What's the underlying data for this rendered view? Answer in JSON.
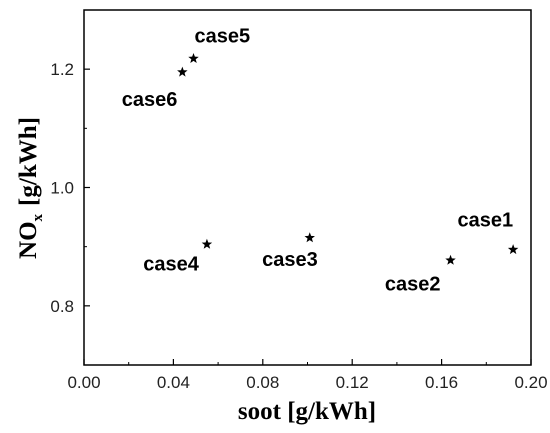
{
  "chart_data": {
    "type": "scatter",
    "title": "",
    "xlabel": "soot [g/kWh]",
    "ylabel_main": "NO",
    "ylabel_sub": "x",
    "ylabel_unit": "[g/kWh]",
    "xlim": [
      0.0,
      0.2
    ],
    "ylim": [
      0.7,
      1.3
    ],
    "xticks": [
      "0.00",
      "0.04",
      "0.08",
      "0.12",
      "0.16",
      "0.20"
    ],
    "yticks": [
      "0.8",
      "1.0",
      "1.2"
    ],
    "grid": false,
    "marker": "star",
    "points": [
      {
        "label": "case1",
        "x": 0.192,
        "y": 0.895
      },
      {
        "label": "case2",
        "x": 0.164,
        "y": 0.877
      },
      {
        "label": "case3",
        "x": 0.101,
        "y": 0.915
      },
      {
        "label": "case4",
        "x": 0.055,
        "y": 0.904
      },
      {
        "label": "case5",
        "x": 0.049,
        "y": 1.218
      },
      {
        "label": "case6",
        "x": 0.044,
        "y": 1.195
      }
    ]
  }
}
